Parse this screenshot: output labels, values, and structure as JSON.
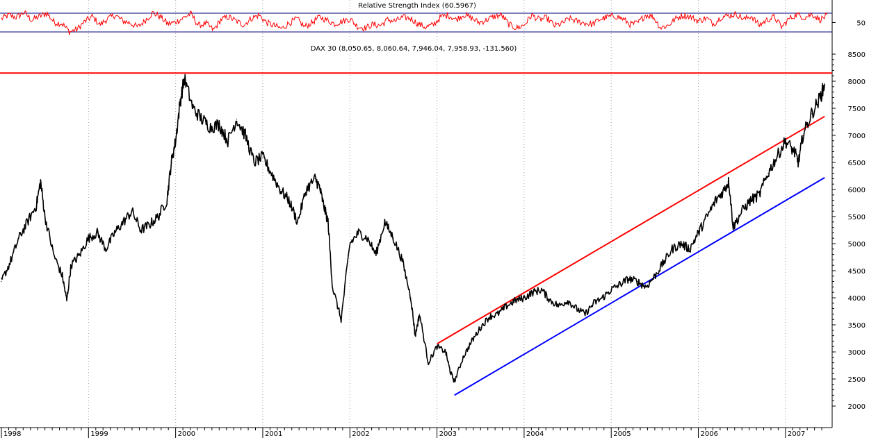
{
  "chart_data": [
    {
      "type": "line",
      "title": "Relative Strength Index (60.5967)",
      "ylim": [
        0,
        100
      ],
      "yticks": [
        50
      ],
      "reference_lines": [
        70,
        30
      ],
      "colors": {
        "series": "#ff0000",
        "reference": "#000080"
      },
      "series": [
        {
          "values": [
            58,
            66,
            61,
            72,
            55,
            63,
            70,
            50,
            48,
            30,
            36,
            52,
            63,
            45,
            58,
            66,
            54,
            49,
            40,
            55,
            71,
            62,
            47,
            51,
            60,
            69,
            44,
            48,
            34,
            57,
            62,
            53,
            45,
            59,
            66,
            50,
            43,
            37,
            49,
            58,
            41,
            50,
            62,
            55,
            47,
            53,
            58,
            42,
            38,
            46,
            44,
            56,
            53,
            61,
            59,
            47,
            40,
            45,
            62,
            66,
            56,
            67,
            60,
            50,
            55,
            63,
            66,
            46,
            38,
            45,
            66,
            56,
            60,
            43,
            48,
            59,
            52,
            49,
            46,
            57,
            62,
            64,
            58,
            46,
            49,
            66,
            63,
            39,
            44,
            58,
            66,
            62,
            53,
            60,
            47,
            62,
            65,
            68,
            57,
            64,
            44,
            55,
            62,
            40,
            59,
            67,
            61,
            68,
            56,
            65
          ]
        }
      ]
    },
    {
      "type": "line",
      "title": "DAX 30 (8,050.65, 8,060.64, 7,946.04, 7,958.93, -131.560)",
      "xlabel": "",
      "ylabel": "",
      "x_tick_labels": [
        "1998",
        "1999",
        "2000",
        "2001",
        "2002",
        "2003",
        "2004",
        "2005",
        "2006",
        "2007"
      ],
      "ylim": [
        1750,
        9000
      ],
      "yticks": [
        2000,
        2500,
        3000,
        3500,
        4000,
        4500,
        5000,
        5500,
        6000,
        6500,
        7000,
        7500,
        8000,
        8500
      ],
      "grid": true,
      "colors": {
        "price": "#000000",
        "resistance": "#ff0000",
        "support": "#0000ff",
        "grid": "#a0a0a0"
      },
      "series": [
        {
          "x": [
            1998.0,
            1998.1,
            1998.2,
            1998.3,
            1998.4,
            1998.45,
            1998.5,
            1998.6,
            1998.7,
            1998.75,
            1998.8,
            1998.9,
            1999.0,
            1999.1,
            1999.2,
            1999.3,
            1999.4,
            1999.5,
            1999.6,
            1999.7,
            1999.8,
            1999.9,
            1999.95,
            2000.0,
            2000.05,
            2000.1,
            2000.2,
            2000.3,
            2000.4,
            2000.5,
            2000.6,
            2000.7,
            2000.8,
            2000.9,
            2001.0,
            2001.1,
            2001.2,
            2001.3,
            2001.4,
            2001.5,
            2001.6,
            2001.65,
            2001.7,
            2001.75,
            2001.8,
            2001.9,
            2002.0,
            2002.1,
            2002.2,
            2002.3,
            2002.4,
            2002.5,
            2002.6,
            2002.7,
            2002.75,
            2002.8,
            2002.9,
            2003.0,
            2003.1,
            2003.15,
            2003.2,
            2003.3,
            2003.4,
            2003.5,
            2003.6,
            2003.7,
            2003.8,
            2003.9,
            2004.0,
            2004.1,
            2004.2,
            2004.3,
            2004.4,
            2004.5,
            2004.6,
            2004.7,
            2004.8,
            2004.9,
            2005.0,
            2005.1,
            2005.2,
            2005.3,
            2005.4,
            2005.5,
            2005.6,
            2005.7,
            2005.8,
            2005.9,
            2006.0,
            2006.1,
            2006.2,
            2006.3,
            2006.35,
            2006.4,
            2006.5,
            2006.6,
            2006.7,
            2006.8,
            2006.9,
            2007.0,
            2007.1,
            2007.15,
            2007.2,
            2007.3,
            2007.4,
            2007.45
          ],
          "values": [
            4300,
            4650,
            5100,
            5400,
            5700,
            6150,
            5500,
            4800,
            4400,
            3950,
            4600,
            4800,
            5100,
            5200,
            4900,
            5200,
            5400,
            5600,
            5250,
            5350,
            5500,
            5800,
            6500,
            6900,
            7600,
            8050,
            7500,
            7300,
            7150,
            7200,
            6900,
            7300,
            7000,
            6500,
            6600,
            6300,
            6000,
            5800,
            5400,
            6000,
            6200,
            6050,
            5700,
            5400,
            4200,
            3600,
            5000,
            5200,
            5100,
            4800,
            5400,
            5100,
            4700,
            4000,
            3300,
            3700,
            2800,
            3100,
            3000,
            2650,
            2450,
            2900,
            3200,
            3450,
            3650,
            3700,
            3850,
            3950,
            4000,
            4100,
            4150,
            3950,
            3850,
            3950,
            3800,
            3700,
            3900,
            4000,
            4150,
            4250,
            4350,
            4300,
            4200,
            4400,
            4650,
            4900,
            5000,
            4900,
            5200,
            5500,
            5800,
            6000,
            6150,
            5300,
            5600,
            5800,
            5900,
            6300,
            6600,
            6900,
            6700,
            6500,
            7000,
            7400,
            7700,
            7950
          ]
        }
      ],
      "annotations": [
        {
          "type": "horizontal_line",
          "name": "resistance",
          "y": 8150
        },
        {
          "type": "trend_line",
          "name": "resistance",
          "x": [
            2003.0,
            2007.45
          ],
          "y": [
            3150,
            7350
          ]
        },
        {
          "type": "trend_line",
          "name": "support",
          "x": [
            2003.2,
            2007.45
          ],
          "y": [
            2200,
            6220
          ]
        }
      ]
    }
  ]
}
